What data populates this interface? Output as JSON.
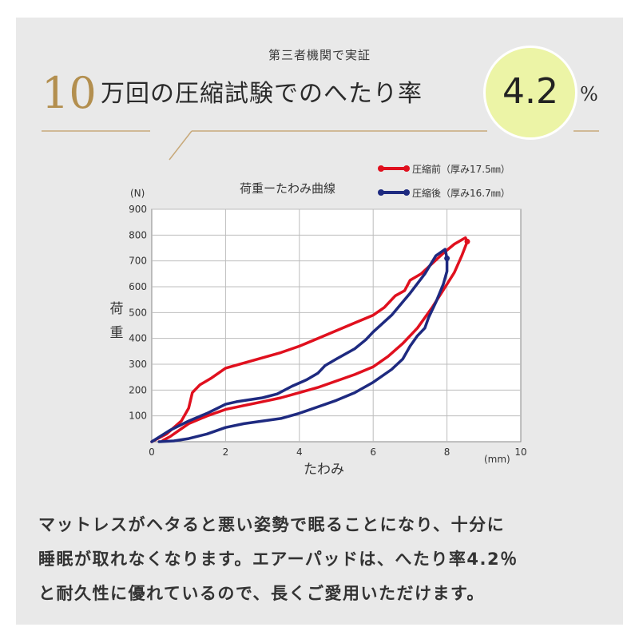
{
  "header": {
    "label": "第三者機関で実証",
    "number": "10",
    "text": "万回の圧縮試験でのへたり率",
    "value": "4.2",
    "unit": "%",
    "circle_color": "#ecf4a6",
    "number_color": "#b38f4f"
  },
  "chart_data": {
    "type": "line",
    "title": "荷重ーたわみ曲線",
    "xlabel": "たわみ",
    "ylabel": "荷重",
    "xunit": "(mm)",
    "yunit": "(N)",
    "xlim": [
      0,
      10
    ],
    "ylim": [
      0,
      900
    ],
    "xticks": [
      "0",
      "2",
      "4",
      "6",
      "8",
      "10"
    ],
    "yticks": [
      "100",
      "200",
      "300",
      "400",
      "500",
      "600",
      "700",
      "800",
      "900"
    ],
    "grid": true,
    "legend_position": "top-right",
    "series": [
      {
        "name": "圧縮前（厚み17.5㎜）",
        "color": "#e0101e",
        "values": [
          [
            0,
            0
          ],
          [
            0.4,
            30
          ],
          [
            0.8,
            80
          ],
          [
            1.0,
            130
          ],
          [
            1.1,
            190
          ],
          [
            1.3,
            220
          ],
          [
            1.6,
            245
          ],
          [
            2.0,
            285
          ],
          [
            2.5,
            305
          ],
          [
            3.0,
            325
          ],
          [
            3.5,
            345
          ],
          [
            4.0,
            370
          ],
          [
            4.5,
            400
          ],
          [
            5.0,
            430
          ],
          [
            5.5,
            460
          ],
          [
            6.0,
            490
          ],
          [
            6.3,
            520
          ],
          [
            6.6,
            565
          ],
          [
            6.85,
            585
          ],
          [
            7.0,
            625
          ],
          [
            7.3,
            650
          ],
          [
            7.6,
            690
          ],
          [
            7.9,
            730
          ],
          [
            8.2,
            765
          ],
          [
            8.5,
            790
          ],
          [
            8.55,
            775
          ],
          [
            8.4,
            720
          ],
          [
            8.2,
            655
          ],
          [
            8.0,
            610
          ],
          [
            7.6,
            520
          ],
          [
            7.2,
            440
          ],
          [
            6.8,
            380
          ],
          [
            6.4,
            330
          ],
          [
            6.0,
            290
          ],
          [
            5.5,
            260
          ],
          [
            5.0,
            235
          ],
          [
            4.5,
            210
          ],
          [
            4.0,
            190
          ],
          [
            3.5,
            170
          ],
          [
            3.0,
            155
          ],
          [
            2.5,
            140
          ],
          [
            2.0,
            125
          ],
          [
            1.5,
            100
          ],
          [
            1.0,
            70
          ],
          [
            0.7,
            40
          ],
          [
            0.5,
            20
          ],
          [
            0.3,
            5
          ]
        ]
      },
      {
        "name": "圧縮後（厚み16.7㎜）",
        "color": "#1e2a80",
        "values": [
          [
            0,
            0
          ],
          [
            0.5,
            45
          ],
          [
            1.0,
            80
          ],
          [
            1.5,
            110
          ],
          [
            2.0,
            145
          ],
          [
            2.3,
            155
          ],
          [
            3.0,
            170
          ],
          [
            3.4,
            185
          ],
          [
            3.8,
            215
          ],
          [
            4.2,
            240
          ],
          [
            4.5,
            265
          ],
          [
            4.7,
            295
          ],
          [
            5.0,
            320
          ],
          [
            5.5,
            360
          ],
          [
            5.8,
            395
          ],
          [
            6.0,
            425
          ],
          [
            6.5,
            490
          ],
          [
            7.0,
            575
          ],
          [
            7.4,
            650
          ],
          [
            7.7,
            720
          ],
          [
            7.95,
            745
          ],
          [
            8.0,
            710
          ],
          [
            8.0,
            660
          ],
          [
            7.9,
            610
          ],
          [
            7.7,
            540
          ],
          [
            7.5,
            480
          ],
          [
            7.4,
            440
          ],
          [
            7.2,
            410
          ],
          [
            7.0,
            370
          ],
          [
            6.8,
            320
          ],
          [
            6.5,
            280
          ],
          [
            6.0,
            230
          ],
          [
            5.5,
            190
          ],
          [
            5.0,
            160
          ],
          [
            4.5,
            135
          ],
          [
            4.0,
            110
          ],
          [
            3.5,
            90
          ],
          [
            3.0,
            80
          ],
          [
            2.5,
            70
          ],
          [
            2.0,
            55
          ],
          [
            1.5,
            30
          ],
          [
            1.0,
            12
          ],
          [
            0.6,
            3
          ],
          [
            0.2,
            0
          ]
        ]
      }
    ]
  },
  "body": {
    "lines": [
      "マットレスがヘタると悪い姿勢で眠ることになり、十分に",
      "睡眠が取れなくなります。エアーパッドは、へたり率4.2％",
      "と耐久性に優れているので、長くご愛用いただけます。"
    ]
  }
}
